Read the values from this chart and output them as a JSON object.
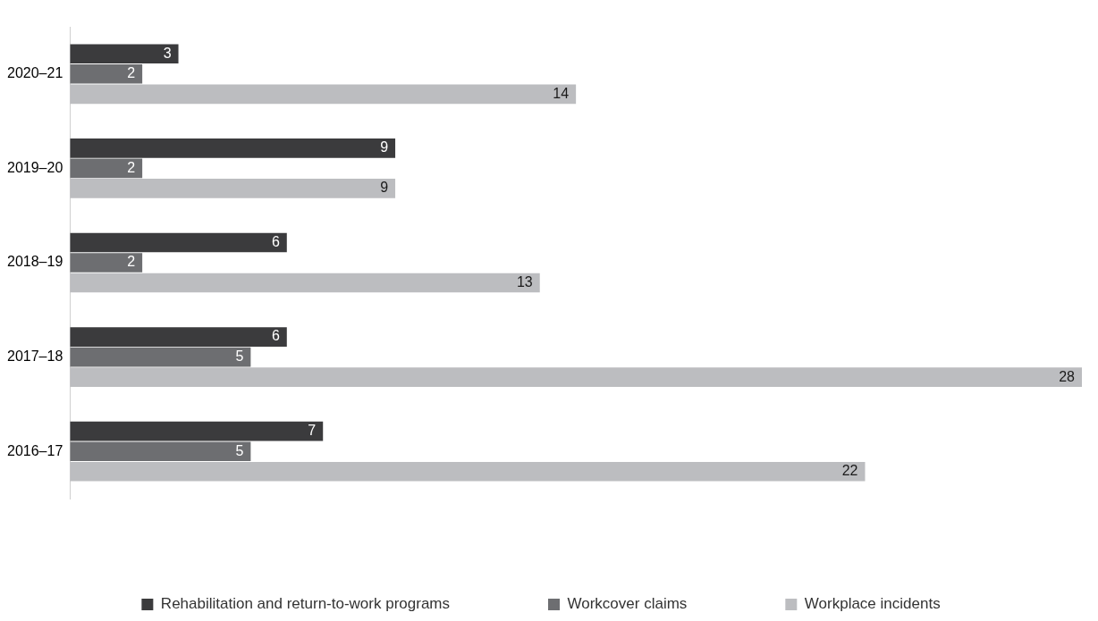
{
  "chart_data": {
    "type": "bar",
    "orientation": "horizontal",
    "categories": [
      "2020–21",
      "2019–20",
      "2018–19",
      "2017–18",
      "2016–17"
    ],
    "series": [
      {
        "name": "Rehabilitation and return-to-work programs",
        "color": "#3b3b3d",
        "values": [
          3,
          9,
          6,
          6,
          7
        ]
      },
      {
        "name": "Workcover claims",
        "color": "#6d6e71",
        "values": [
          2,
          2,
          2,
          5,
          5
        ]
      },
      {
        "name": "Workplace incidents",
        "color": "#bcbdc0",
        "values": [
          14,
          9,
          13,
          28,
          22
        ]
      }
    ],
    "xlim": [
      0,
      28
    ],
    "tick_labels": "y",
    "data_labels": true,
    "legend": "bottom",
    "grid": false
  }
}
